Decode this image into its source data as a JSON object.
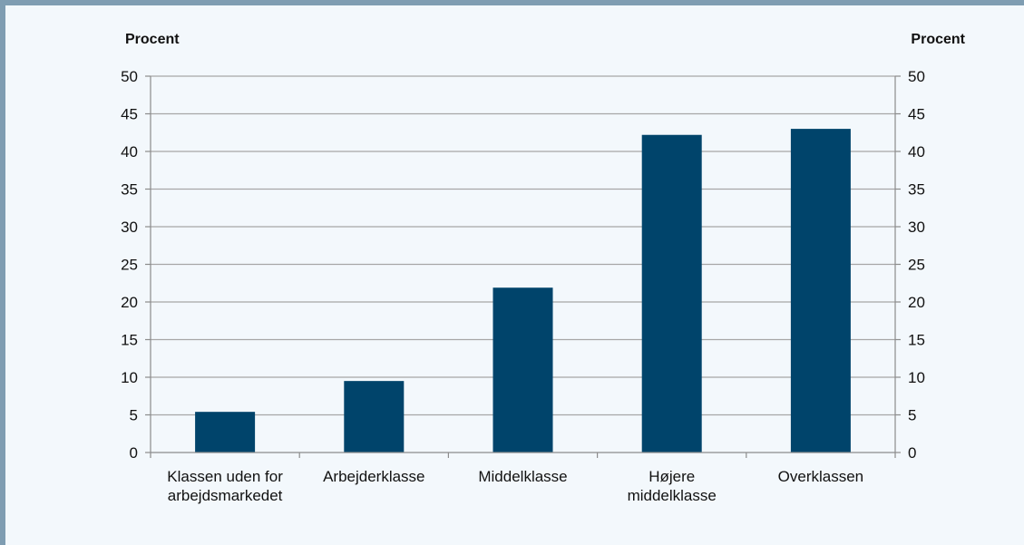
{
  "chart_data": {
    "type": "bar",
    "y_unit_left": "Procent",
    "y_unit_right": "Procent",
    "categories": [
      [
        "Klassen uden for",
        "arbejdsmarkedet"
      ],
      [
        "Arbejderklasse"
      ],
      [
        "Middelklasse"
      ],
      [
        "Højere",
        "middelklasse"
      ],
      [
        "Overklassen"
      ]
    ],
    "values": [
      5.4,
      9.5,
      21.9,
      42.2,
      43.0
    ],
    "ylim": [
      0,
      50
    ],
    "yticks": [
      0,
      5,
      10,
      15,
      20,
      25,
      30,
      35,
      40,
      45,
      50
    ],
    "grid": true,
    "legend": "none",
    "colors": {
      "bar": "#00446b",
      "grid": "#a6a6a6",
      "axis": "#8c8c8c",
      "background": "#f3f8fc",
      "frame": "#7f9db2"
    }
  }
}
